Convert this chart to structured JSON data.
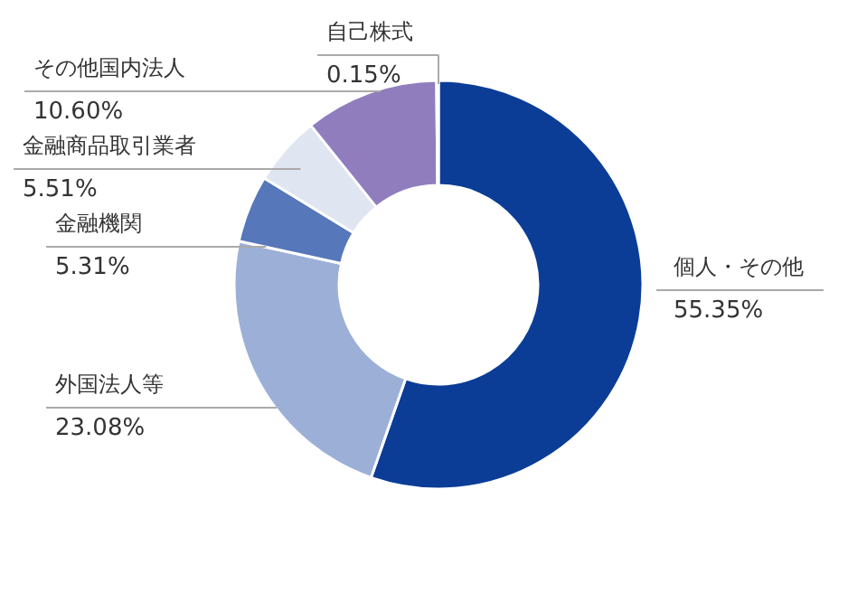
{
  "chart_data": {
    "type": "donut",
    "categories": [
      "個人・その他",
      "外国法人等",
      "金融機関",
      "金融商品取引業者",
      "その他国内法人",
      "自己株式"
    ],
    "values": [
      55.35,
      23.08,
      5.31,
      5.51,
      10.6,
      0.15
    ],
    "colors": [
      "#0b3d97",
      "#9cb0d7",
      "#5677b9",
      "#dfe5f1",
      "#8f7dbe",
      "#c9c9df"
    ],
    "value_labels": [
      "55.35%",
      "23.08%",
      "5.31%",
      "5.51%",
      "10.60%",
      "0.15%"
    ]
  }
}
